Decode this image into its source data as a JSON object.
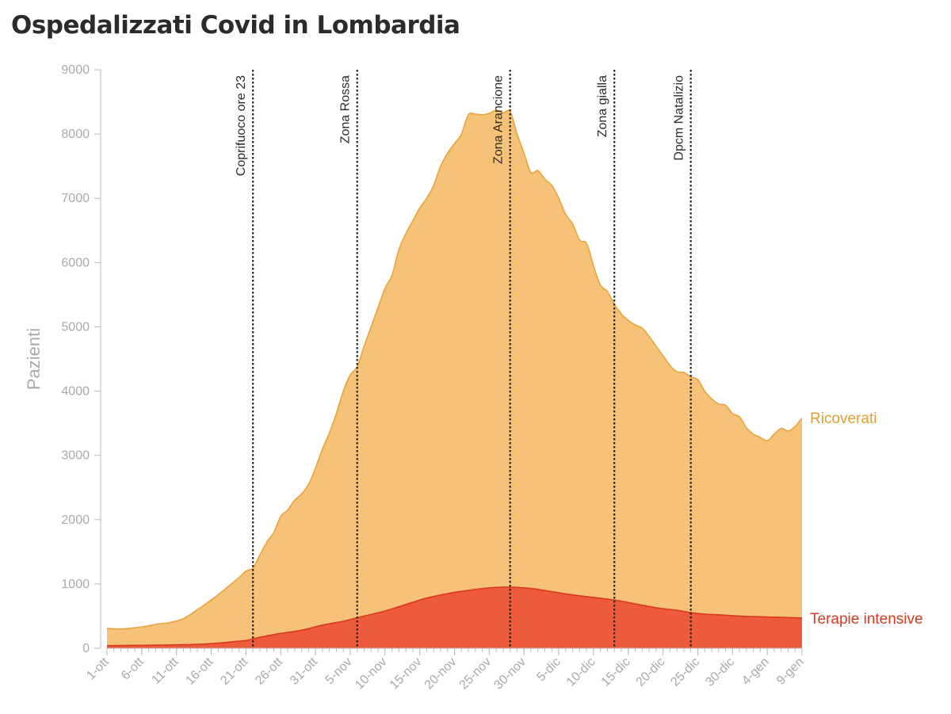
{
  "title": "Ospedalizzati Covid in Lombardia",
  "colors": {
    "ricoverati_fill": "#f5c277",
    "ricoverati_line": "#e9a33a",
    "ricoverati_label": "#e0a030",
    "terapie_fill": "#ee5a3c",
    "terapie_line": "#d83a1f",
    "terapie_label": "#d83a1f",
    "axis": "#b8b8b8",
    "event_line": "#222222"
  },
  "chart_data": {
    "type": "area",
    "title": "Ospedalizzati Covid in Lombardia",
    "xlabel": "",
    "ylabel": "Pazienti",
    "ylim": [
      0,
      9000
    ],
    "y_ticks": [
      0,
      1000,
      2000,
      3000,
      4000,
      5000,
      6000,
      7000,
      8000,
      9000
    ],
    "x_ticks": [
      "1-ott",
      "6-ott",
      "11-ott",
      "16-ott",
      "21-ott",
      "26-ott",
      "31-ott",
      "5-nov",
      "10-nov",
      "15-nov",
      "20-nov",
      "25-nov",
      "30-nov",
      "5-dic",
      "10-dic",
      "15-dic",
      "20-dic",
      "25-dic",
      "30-dic",
      "4-gen",
      "9-gen"
    ],
    "grid": false,
    "legend": "direct labels at right end of series",
    "x_start": "2020-10-01",
    "x_end": "2021-01-09",
    "series": [
      {
        "name": "Ricoverati",
        "points": [
          [
            "2020-10-01",
            310
          ],
          [
            "2020-10-03",
            300
          ],
          [
            "2020-10-06",
            330
          ],
          [
            "2020-10-08",
            370
          ],
          [
            "2020-10-10",
            400
          ],
          [
            "2020-10-12",
            460
          ],
          [
            "2020-10-14",
            600
          ],
          [
            "2020-10-16",
            750
          ],
          [
            "2020-10-18",
            920
          ],
          [
            "2020-10-20",
            1100
          ],
          [
            "2020-10-21",
            1200
          ],
          [
            "2020-10-22",
            1250
          ],
          [
            "2020-10-23",
            1450
          ],
          [
            "2020-10-24",
            1650
          ],
          [
            "2020-10-25",
            1800
          ],
          [
            "2020-10-26",
            2050
          ],
          [
            "2020-10-27",
            2150
          ],
          [
            "2020-10-28",
            2300
          ],
          [
            "2020-10-29",
            2400
          ],
          [
            "2020-10-30",
            2550
          ],
          [
            "2020-10-31",
            2800
          ],
          [
            "2020-11-01",
            3100
          ],
          [
            "2020-11-02",
            3350
          ],
          [
            "2020-11-03",
            3650
          ],
          [
            "2020-11-04",
            4000
          ],
          [
            "2020-11-05",
            4250
          ],
          [
            "2020-11-06",
            4380
          ],
          [
            "2020-11-07",
            4700
          ],
          [
            "2020-11-08",
            5000
          ],
          [
            "2020-11-09",
            5300
          ],
          [
            "2020-11-10",
            5600
          ],
          [
            "2020-11-11",
            5800
          ],
          [
            "2020-11-12",
            6200
          ],
          [
            "2020-11-13",
            6450
          ],
          [
            "2020-11-14",
            6650
          ],
          [
            "2020-11-15",
            6850
          ],
          [
            "2020-11-16",
            7000
          ],
          [
            "2020-11-17",
            7200
          ],
          [
            "2020-11-18",
            7500
          ],
          [
            "2020-11-19",
            7700
          ],
          [
            "2020-11-20",
            7850
          ],
          [
            "2020-11-21",
            8000
          ],
          [
            "2020-11-22",
            8300
          ],
          [
            "2020-11-23",
            8310
          ],
          [
            "2020-11-24",
            8300
          ],
          [
            "2020-11-25",
            8320
          ],
          [
            "2020-11-26",
            8370
          ],
          [
            "2020-11-27",
            8330
          ],
          [
            "2020-11-28",
            8350
          ],
          [
            "2020-11-29",
            8000
          ],
          [
            "2020-11-30",
            7700
          ],
          [
            "2020-12-01",
            7400
          ],
          [
            "2020-12-02",
            7430
          ],
          [
            "2020-12-03",
            7300
          ],
          [
            "2020-12-04",
            7200
          ],
          [
            "2020-12-05",
            7000
          ],
          [
            "2020-12-06",
            6750
          ],
          [
            "2020-12-07",
            6600
          ],
          [
            "2020-12-08",
            6350
          ],
          [
            "2020-12-09",
            6300
          ],
          [
            "2020-12-10",
            5950
          ],
          [
            "2020-12-11",
            5650
          ],
          [
            "2020-12-12",
            5550
          ],
          [
            "2020-12-13",
            5350
          ],
          [
            "2020-12-14",
            5200
          ],
          [
            "2020-12-15",
            5100
          ],
          [
            "2020-12-16",
            5030
          ],
          [
            "2020-12-17",
            4980
          ],
          [
            "2020-12-18",
            4850
          ],
          [
            "2020-12-19",
            4700
          ],
          [
            "2020-12-20",
            4550
          ],
          [
            "2020-12-21",
            4400
          ],
          [
            "2020-12-22",
            4300
          ],
          [
            "2020-12-23",
            4290
          ],
          [
            "2020-12-24",
            4220
          ],
          [
            "2020-12-25",
            4180
          ],
          [
            "2020-12-26",
            4000
          ],
          [
            "2020-12-27",
            3880
          ],
          [
            "2020-12-28",
            3800
          ],
          [
            "2020-12-29",
            3780
          ],
          [
            "2020-12-30",
            3650
          ],
          [
            "2020-12-31",
            3600
          ],
          [
            "2021-01-01",
            3430
          ],
          [
            "2021-01-02",
            3330
          ],
          [
            "2021-01-03",
            3280
          ],
          [
            "2021-01-04",
            3230
          ],
          [
            "2021-01-05",
            3330
          ],
          [
            "2021-01-06",
            3420
          ],
          [
            "2021-01-07",
            3380
          ],
          [
            "2021-01-08",
            3450
          ],
          [
            "2021-01-09",
            3580
          ]
        ]
      },
      {
        "name": "Terapie intensive",
        "points": [
          [
            "2020-10-01",
            40
          ],
          [
            "2020-10-05",
            45
          ],
          [
            "2020-10-10",
            50
          ],
          [
            "2020-10-14",
            60
          ],
          [
            "2020-10-17",
            80
          ],
          [
            "2020-10-19",
            100
          ],
          [
            "2020-10-21",
            120
          ],
          [
            "2020-10-23",
            170
          ],
          [
            "2020-10-26",
            230
          ],
          [
            "2020-10-29",
            280
          ],
          [
            "2020-11-01",
            360
          ],
          [
            "2020-11-04",
            420
          ],
          [
            "2020-11-07",
            500
          ],
          [
            "2020-11-10",
            580
          ],
          [
            "2020-11-13",
            680
          ],
          [
            "2020-11-16",
            780
          ],
          [
            "2020-11-19",
            850
          ],
          [
            "2020-11-22",
            900
          ],
          [
            "2020-11-25",
            940
          ],
          [
            "2020-11-28",
            950
          ],
          [
            "2020-12-01",
            930
          ],
          [
            "2020-12-04",
            880
          ],
          [
            "2020-12-07",
            830
          ],
          [
            "2020-12-10",
            790
          ],
          [
            "2020-12-13",
            750
          ],
          [
            "2020-12-16",
            690
          ],
          [
            "2020-12-19",
            630
          ],
          [
            "2020-12-22",
            590
          ],
          [
            "2020-12-25",
            540
          ],
          [
            "2020-12-28",
            520
          ],
          [
            "2020-12-31",
            500
          ],
          [
            "2021-01-03",
            490
          ],
          [
            "2021-01-06",
            480
          ],
          [
            "2021-01-09",
            470
          ]
        ]
      }
    ],
    "events": [
      {
        "date": "2020-10-22",
        "label": "Coprifuoco ore 23"
      },
      {
        "date": "2020-11-06",
        "label": "Zona Rossa"
      },
      {
        "date": "2020-11-28",
        "label": "Zona Arancione"
      },
      {
        "date": "2020-12-13",
        "label": "Zona gialla"
      },
      {
        "date": "2020-12-24",
        "label": "Dpcm Natalizio"
      }
    ]
  }
}
